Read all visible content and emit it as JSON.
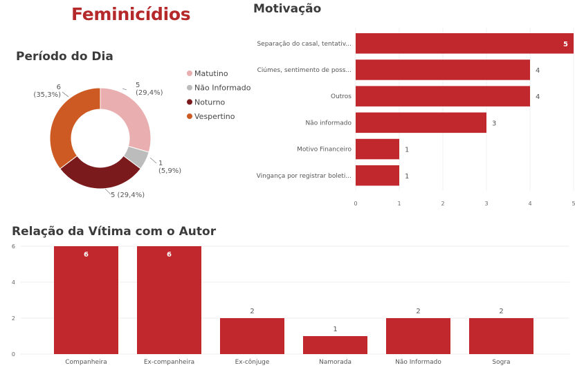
{
  "page": {
    "title": "Feminicídios"
  },
  "colors": {
    "bar": "#c0282d",
    "title": "#b5292b",
    "matutino": "#e8aeb0",
    "nao_informado": "#bcbcbc",
    "noturno": "#7b1a1c",
    "vespertino": "#cc5a22"
  },
  "chart_data": [
    {
      "id": "periodo",
      "type": "pie",
      "title": "Período do Dia",
      "slices": [
        {
          "label": "Matutino",
          "value": 5,
          "data_label": "5\n(29,4%)",
          "color": "#e8aeb0"
        },
        {
          "label": "Não Informado",
          "value": 1,
          "data_label": "1\n(5,9%)",
          "color": "#bcbcbc"
        },
        {
          "label": "Noturno",
          "value": 5,
          "data_label": "5 (29,4%)",
          "color": "#7b1a1c"
        },
        {
          "label": "Vespertino",
          "value": 6,
          "data_label": "6\n(35,3%)",
          "color": "#cc5a22"
        }
      ],
      "legend_position": "right"
    },
    {
      "id": "motivacao",
      "type": "bar",
      "orientation": "horizontal",
      "title": "Motivação",
      "categories": [
        "Separação do casal, tentativ...",
        "Ciúmes, sentimento de poss...",
        "Outros",
        "Não informado",
        "Motivo Financeiro",
        "Vingança por registrar boleti..."
      ],
      "values": [
        5,
        4,
        4,
        3,
        1,
        1
      ],
      "xlim": [
        0,
        5
      ],
      "xticks": [
        "0",
        "1",
        "2",
        "3",
        "4",
        "5"
      ]
    },
    {
      "id": "relacao",
      "type": "bar",
      "orientation": "vertical",
      "title": "Relação da Vítima com o Autor",
      "categories": [
        "Companheira",
        "Ex-companheira",
        "Ex-cônjuge",
        "Namorada",
        "Não Informado",
        "Sogra"
      ],
      "values": [
        6,
        6,
        2,
        1,
        2,
        2
      ],
      "ylim": [
        0,
        6
      ],
      "yticks": [
        "0",
        "2",
        "4",
        "6"
      ]
    }
  ]
}
